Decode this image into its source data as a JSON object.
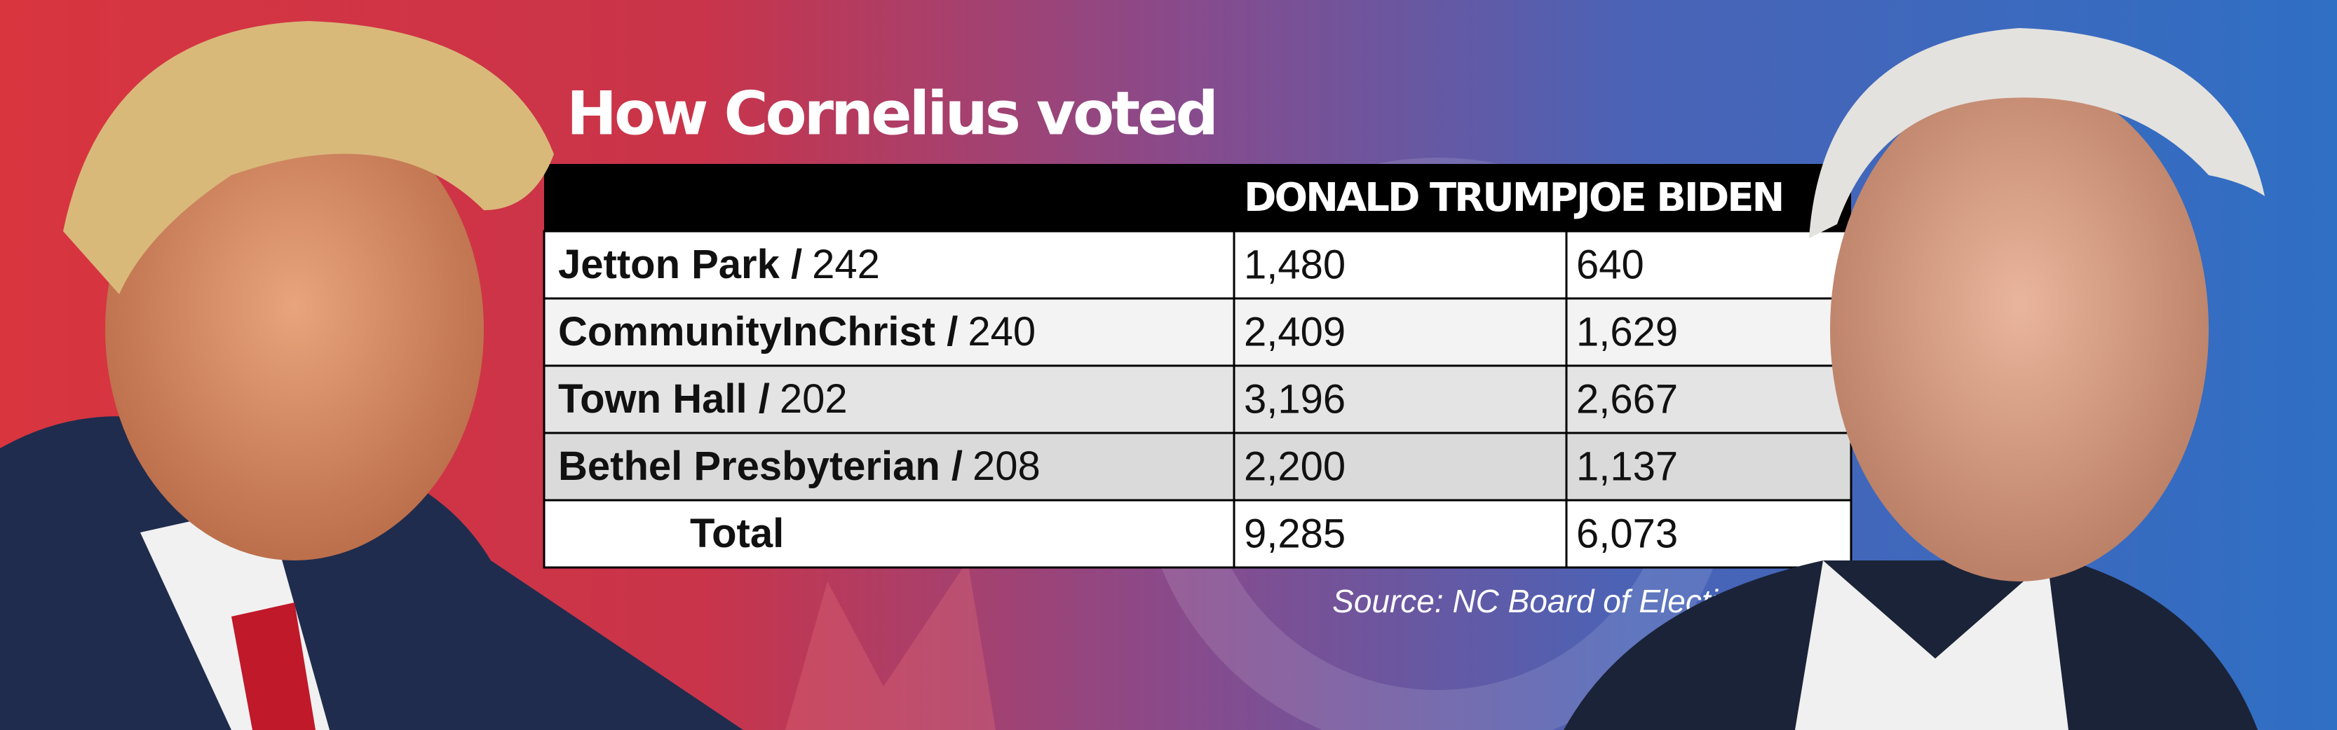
{
  "title": "How Cornelius voted",
  "table": {
    "header": [
      "DONALD TRUMP",
      "JOE BIDEN"
    ],
    "rows": [
      {
        "label": "Jetton Park /",
        "number": "242",
        "cells": [
          "1,480",
          "640"
        ]
      },
      {
        "label": "CommunityInChrist /",
        "number": "240",
        "cells": [
          "2,409",
          "1,629"
        ]
      },
      {
        "label": "Town Hall /",
        "number": "202",
        "cells": [
          "3,196",
          "2,667"
        ]
      },
      {
        "label": "Bethel Presbyterian /",
        "number": "208",
        "cells": [
          "2,200",
          "1,137"
        ]
      },
      {
        "label": "Total",
        "cells": [
          "9,285",
          "6,073"
        ]
      }
    ]
  },
  "source": "Source: NC Board of Elections"
}
